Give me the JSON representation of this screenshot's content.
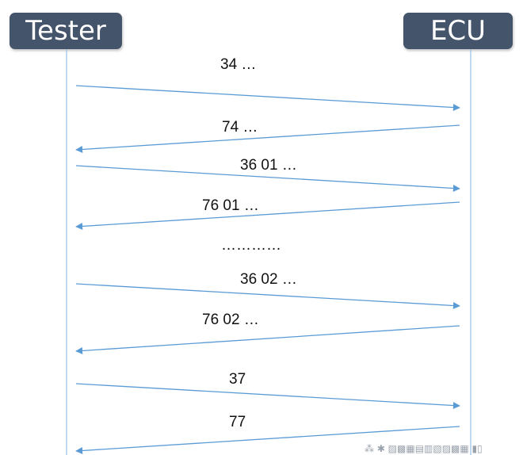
{
  "participants": {
    "left": "Tester",
    "right": "ECU"
  },
  "messages": [
    {
      "label": "34 …",
      "from": "Tester",
      "to": "ECU"
    },
    {
      "label": "74 …",
      "from": "ECU",
      "to": "Tester"
    },
    {
      "label": "36 01 …",
      "from": "Tester",
      "to": "ECU"
    },
    {
      "label": "76 01 …",
      "from": "ECU",
      "to": "Tester"
    },
    {
      "label": "…………",
      "from": "",
      "to": ""
    },
    {
      "label": "36 02 …",
      "from": "Tester",
      "to": "ECU"
    },
    {
      "label": "76 02 …",
      "from": "ECU",
      "to": "Tester"
    },
    {
      "label": "37",
      "from": "Tester",
      "to": "ECU"
    },
    {
      "label": "77",
      "from": "ECU",
      "to": "Tester"
    }
  ],
  "colors": {
    "participant_box": "#44546a",
    "lifeline": "#9dc3e6",
    "arrow": "#5b9bd5"
  }
}
